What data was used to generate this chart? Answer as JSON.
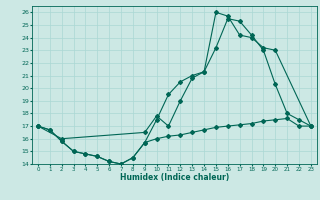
{
  "xlabel": "Humidex (Indice chaleur)",
  "ylabel": "",
  "bg_color": "#cce8e4",
  "grid_color": "#aad8d4",
  "line_color": "#006655",
  "xlim": [
    -0.5,
    23.5
  ],
  "ylim": [
    14,
    26.5
  ],
  "xtick_labels": [
    "0",
    "1",
    "2",
    "3",
    "4",
    "5",
    "6",
    "7",
    "8",
    "9",
    "10",
    "11",
    "12",
    "13",
    "14",
    "15",
    "16",
    "17",
    "18",
    "19",
    "20",
    "21",
    "22",
    "23"
  ],
  "xtick_vals": [
    0,
    1,
    2,
    3,
    4,
    5,
    6,
    7,
    8,
    9,
    10,
    11,
    12,
    13,
    14,
    15,
    16,
    17,
    18,
    19,
    20,
    21,
    22,
    23
  ],
  "ytick_vals": [
    14,
    15,
    16,
    17,
    18,
    19,
    20,
    21,
    22,
    23,
    24,
    25,
    26
  ],
  "line1_x": [
    0,
    1,
    2,
    3,
    4,
    5,
    6,
    7,
    8,
    9,
    10,
    11,
    12,
    13,
    14,
    15,
    16,
    17,
    18,
    19,
    20,
    21,
    22,
    23
  ],
  "line1_y": [
    17.0,
    16.7,
    15.8,
    15.0,
    14.8,
    14.6,
    14.2,
    14.0,
    14.5,
    15.7,
    16.0,
    16.2,
    16.3,
    16.5,
    16.7,
    16.9,
    17.0,
    17.1,
    17.2,
    17.4,
    17.5,
    17.6,
    17.0,
    17.0
  ],
  "line2_x": [
    0,
    1,
    2,
    3,
    4,
    5,
    6,
    7,
    8,
    9,
    10,
    11,
    12,
    13,
    14,
    15,
    16,
    17,
    18,
    19,
    20,
    21,
    22,
    23
  ],
  "line2_y": [
    17.0,
    16.7,
    15.8,
    15.0,
    14.8,
    14.6,
    14.2,
    14.0,
    14.5,
    15.7,
    17.5,
    19.5,
    20.5,
    21.0,
    21.3,
    23.2,
    25.5,
    25.3,
    24.2,
    23.0,
    20.3,
    18.0,
    17.5,
    17.0
  ],
  "line3_x": [
    0,
    2,
    9,
    10,
    11,
    12,
    13,
    14,
    15,
    16,
    17,
    18,
    19,
    20,
    23
  ],
  "line3_y": [
    17.0,
    16.0,
    16.5,
    17.8,
    17.0,
    19.0,
    20.8,
    21.3,
    26.0,
    25.7,
    24.2,
    24.0,
    23.2,
    23.0,
    17.0
  ]
}
